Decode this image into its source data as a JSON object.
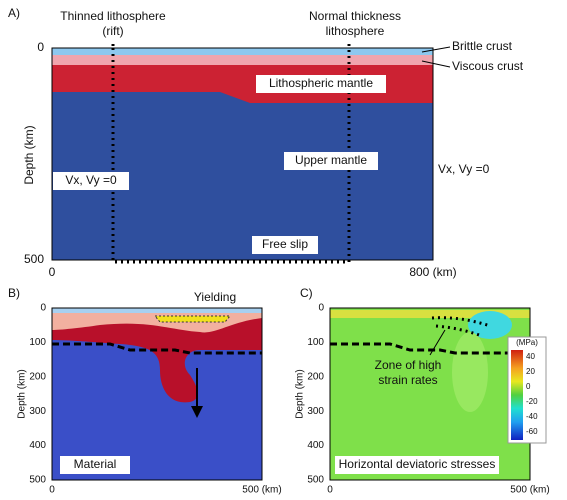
{
  "panel_a": {
    "label": "A)",
    "y_axis_label": "Depth (km)",
    "y_ticks": [
      "0",
      "500"
    ],
    "x_ticks": [
      "0",
      "800 (km)"
    ],
    "thinned": [
      "Thinned lithosphere",
      "(rift)"
    ],
    "normal": [
      "Normal thickness",
      "lithosphere"
    ],
    "brittle": "Brittle crust",
    "viscous": "Viscous crust",
    "lith_mantle": "Lithospheric mantle",
    "upper_mantle": "Upper mantle",
    "bc_left": "Vx, Vy =0",
    "bc_right": "Vx, Vy =0",
    "bc_bottom": "Free slip"
  },
  "panel_b": {
    "label": "B)",
    "y_axis_label": "Depth (km)",
    "y_ticks": [
      "0",
      "100",
      "200",
      "300",
      "400",
      "500"
    ],
    "x_ticks": [
      "0",
      "500 (km)"
    ],
    "yielding": "Yielding",
    "caption": "Material"
  },
  "panel_c": {
    "label": "C)",
    "y_axis_label": "Depth (km)",
    "y_ticks": [
      "0",
      "100",
      "200",
      "300",
      "400",
      "500"
    ],
    "x_ticks": [
      "0",
      "500 (km)"
    ],
    "zone": [
      "Zone of high",
      "strain rates"
    ],
    "caption": "Horizontal deviatoric stresses",
    "colorbar_unit": "(MPa)",
    "colorbar_ticks": [
      "40",
      "20",
      "0",
      "-20",
      "-40",
      "-60"
    ]
  }
}
